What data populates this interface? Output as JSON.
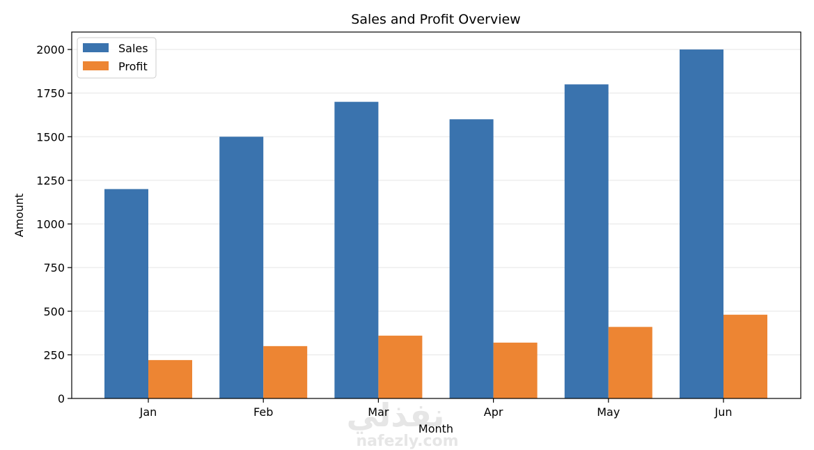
{
  "chart_data": {
    "type": "bar",
    "title": "Sales and Profit Overview",
    "xlabel": "Month",
    "ylabel": "Amount",
    "categories": [
      "Jan",
      "Feb",
      "Mar",
      "Apr",
      "May",
      "Jun"
    ],
    "series": [
      {
        "name": "Sales",
        "values": [
          1200,
          1500,
          1700,
          1600,
          1800,
          2000
        ],
        "color": "#3a73ae"
      },
      {
        "name": "Profit",
        "values": [
          220,
          300,
          360,
          320,
          410,
          480
        ],
        "color": "#ed8533"
      }
    ],
    "ylim": [
      0,
      2100
    ],
    "yticks": [
      0,
      250,
      500,
      750,
      1000,
      1250,
      1500,
      1750,
      2000
    ],
    "grid": "y",
    "legend": "top-left"
  },
  "watermark": {
    "arabic": "نفذلي",
    "latin": "nafezly.com"
  }
}
